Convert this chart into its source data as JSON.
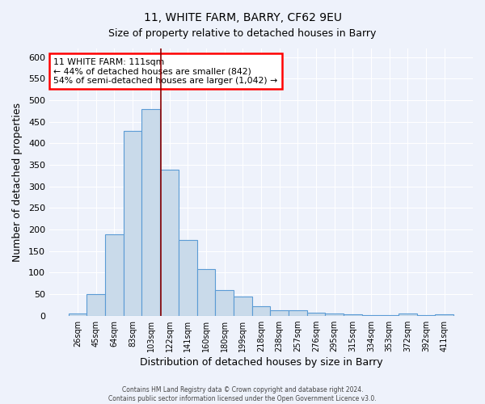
{
  "title": "11, WHITE FARM, BARRY, CF62 9EU",
  "subtitle": "Size of property relative to detached houses in Barry",
  "xlabel": "Distribution of detached houses by size in Barry",
  "ylabel": "Number of detached properties",
  "bar_labels": [
    "26sqm",
    "45sqm",
    "64sqm",
    "83sqm",
    "103sqm",
    "122sqm",
    "141sqm",
    "160sqm",
    "180sqm",
    "199sqm",
    "218sqm",
    "238sqm",
    "257sqm",
    "276sqm",
    "295sqm",
    "315sqm",
    "334sqm",
    "353sqm",
    "372sqm",
    "392sqm",
    "411sqm"
  ],
  "bar_values": [
    5,
    50,
    188,
    428,
    480,
    338,
    175,
    108,
    60,
    44,
    22,
    12,
    13,
    6,
    5,
    4,
    2,
    1,
    5,
    1,
    3
  ],
  "bar_color": "#c9daea",
  "bar_edge_color": "#5b9bd5",
  "red_line_x": 4.55,
  "annotation_line1": "11 WHITE FARM: 111sqm",
  "annotation_line2": "← 44% of detached houses are smaller (842)",
  "annotation_line3": "54% of semi-detached houses are larger (1,042) →",
  "annotation_box_color": "white",
  "annotation_box_edge": "red",
  "ylim": [
    0,
    620
  ],
  "yticks": [
    0,
    50,
    100,
    150,
    200,
    250,
    300,
    350,
    400,
    450,
    500,
    550,
    600
  ],
  "footer1": "Contains HM Land Registry data © Crown copyright and database right 2024.",
  "footer2": "Contains public sector information licensed under the Open Government Licence v3.0.",
  "bg_color": "#eef2fb",
  "grid_color": "white"
}
